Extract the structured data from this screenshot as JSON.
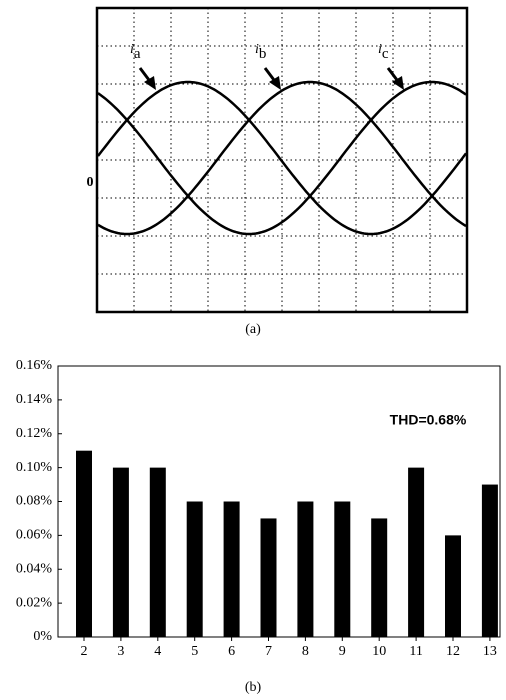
{
  "chart_data": [
    {
      "type": "waveform",
      "labels": [
        {
          "main": "i",
          "sub": "a"
        },
        {
          "main": "i",
          "sub": "b"
        },
        {
          "main": "i",
          "sub": "c"
        }
      ],
      "zero_label": "0",
      "caption": "(a)"
    },
    {
      "type": "bar",
      "categories": [
        "2",
        "3",
        "4",
        "5",
        "6",
        "7",
        "8",
        "9",
        "10",
        "11",
        "12",
        "13"
      ],
      "values": [
        0.11,
        0.1,
        0.1,
        0.08,
        0.08,
        0.07,
        0.08,
        0.08,
        0.07,
        0.1,
        0.06,
        0.09
      ],
      "color": "#000000",
      "ylim": [
        0,
        0.16
      ],
      "yticks": [
        {
          "value": 0,
          "label": "0%"
        },
        {
          "value": 0.02,
          "label": "0.02%"
        },
        {
          "value": 0.04,
          "label": "0.04%"
        },
        {
          "value": 0.06,
          "label": "0.06%"
        },
        {
          "value": 0.08,
          "label": "0.08%"
        },
        {
          "value": 0.1,
          "label": "0.10%"
        },
        {
          "value": 0.12,
          "label": "0.12%"
        },
        {
          "value": 0.14,
          "label": "0.14%"
        },
        {
          "value": 0.16,
          "label": "0.16%"
        }
      ],
      "annotation": "THD=0.68%",
      "caption": "(b)"
    }
  ]
}
